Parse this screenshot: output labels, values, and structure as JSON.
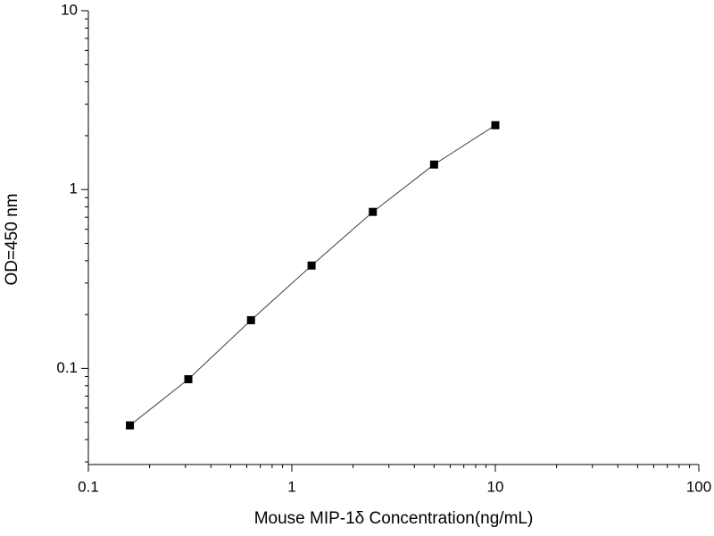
{
  "chart_data": {
    "type": "line",
    "x_label": "Mouse MIP-1δ Concentration(ng/mL)",
    "y_label": "OD=450 nm",
    "x": [
      0.16,
      0.31,
      0.63,
      1.25,
      2.5,
      5,
      10
    ],
    "values": [
      0.048,
      0.087,
      0.186,
      0.376,
      0.75,
      1.38,
      2.29
    ],
    "color": "#000000",
    "line_color": "#404040",
    "x_scale": "log",
    "y_scale": "log",
    "xlim": [
      0.1,
      100
    ],
    "ylim": [
      0.029,
      10
    ],
    "xticks": [
      0.1,
      1,
      10,
      100
    ],
    "yticks": [
      0.1,
      1,
      10
    ],
    "xminorticks": [
      0.2,
      0.3,
      0.4,
      0.5,
      0.6,
      0.7,
      0.8,
      0.9,
      2,
      3,
      4,
      5,
      6,
      7,
      8,
      9,
      20,
      30,
      40,
      50,
      60,
      70,
      80,
      90
    ],
    "yminorticks": [
      0.03,
      0.04,
      0.05,
      0.06,
      0.07,
      0.08,
      0.09,
      0.2,
      0.3,
      0.4,
      0.5,
      0.6,
      0.7,
      0.8,
      0.9,
      2,
      3,
      4,
      5,
      6,
      7,
      8,
      9
    ]
  }
}
